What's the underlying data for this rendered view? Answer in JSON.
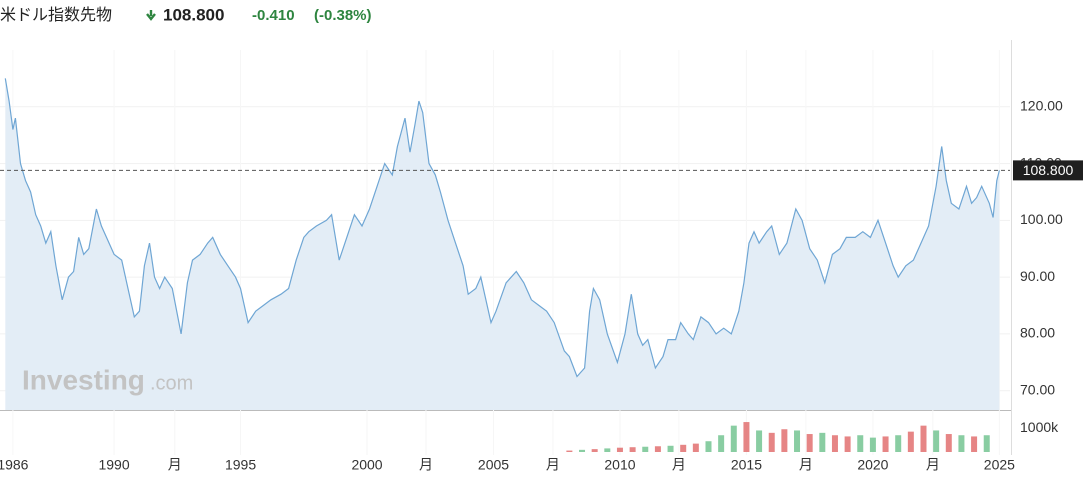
{
  "header": {
    "title": "米ドル指数先物",
    "price": "108.800",
    "change": "-0.410",
    "change_pct": "(-0.38%)"
  },
  "chart_data": {
    "type": "area",
    "watermark": [
      "Investing",
      ".com"
    ],
    "x": [
      1985.7,
      1985.85,
      1986.0,
      1986.1,
      1986.3,
      1986.5,
      1986.7,
      1986.9,
      1987.1,
      1987.3,
      1987.5,
      1987.7,
      1987.95,
      1988.2,
      1988.4,
      1988.6,
      1988.8,
      1989.0,
      1989.3,
      1989.5,
      1989.7,
      1990.0,
      1990.3,
      1990.5,
      1990.8,
      1991.0,
      1991.2,
      1991.4,
      1991.6,
      1991.8,
      1992.0,
      1992.3,
      1992.65,
      1992.9,
      1993.1,
      1993.4,
      1993.7,
      1993.9,
      1994.2,
      1994.5,
      1994.8,
      1995.0,
      1995.3,
      1995.6,
      1995.9,
      1996.2,
      1996.6,
      1996.9,
      1997.2,
      1997.5,
      1997.7,
      1998.0,
      1998.4,
      1998.6,
      1998.9,
      1999.2,
      1999.5,
      1999.8,
      2000.1,
      2000.4,
      2000.7,
      2001.0,
      2001.2,
      2001.5,
      2001.7,
      2001.9,
      2002.05,
      2002.2,
      2002.45,
      2002.7,
      2002.9,
      2003.2,
      2003.5,
      2003.8,
      2004.0,
      2004.3,
      2004.5,
      2004.9,
      2005.1,
      2005.5,
      2005.9,
      2006.2,
      2006.5,
      2006.8,
      2007.1,
      2007.4,
      2007.8,
      2008.0,
      2008.3,
      2008.6,
      2008.8,
      2008.95,
      2009.2,
      2009.5,
      2009.9,
      2010.2,
      2010.45,
      2010.7,
      2010.9,
      2011.1,
      2011.4,
      2011.7,
      2011.9,
      2012.2,
      2012.4,
      2012.7,
      2012.9,
      2013.2,
      2013.5,
      2013.8,
      2014.1,
      2014.4,
      2014.7,
      2014.9,
      2015.1,
      2015.3,
      2015.5,
      2015.8,
      2016.0,
      2016.3,
      2016.6,
      2016.95,
      2017.2,
      2017.5,
      2017.8,
      2018.1,
      2018.4,
      2018.7,
      2018.95,
      2019.3,
      2019.6,
      2019.9,
      2020.2,
      2020.5,
      2020.8,
      2021.0,
      2021.3,
      2021.6,
      2021.9,
      2022.2,
      2022.5,
      2022.72,
      2022.9,
      2023.1,
      2023.4,
      2023.7,
      2023.9,
      2024.1,
      2024.3,
      2024.6,
      2024.75,
      2024.9,
      2025.0
    ],
    "series": [
      {
        "color": "#6fa6d4",
        "fill": "#e3edf6",
        "values": [
          125,
          121,
          116,
          118,
          110,
          107,
          105,
          101,
          99,
          96,
          98,
          92,
          86,
          90,
          91,
          97,
          94,
          95,
          102,
          99,
          97,
          94,
          93,
          89,
          83,
          84,
          92,
          96,
          90,
          88,
          90,
          88,
          80,
          89,
          93,
          94,
          96,
          97,
          94,
          92,
          90,
          88,
          82,
          84,
          85,
          86,
          87,
          88,
          93,
          97,
          98,
          99,
          100,
          101,
          93,
          97,
          101,
          99,
          102,
          106,
          110,
          108,
          113,
          118,
          112,
          117,
          121,
          119,
          110,
          108,
          105,
          100,
          96,
          92,
          87,
          88,
          90,
          82,
          84,
          89,
          91,
          89,
          86,
          85,
          84,
          82,
          77,
          76,
          72.5,
          74,
          84,
          88,
          86,
          80,
          75,
          80,
          87,
          80,
          78,
          79,
          74,
          76,
          79,
          79,
          82,
          80,
          79,
          83,
          82,
          80,
          81,
          80,
          84,
          89,
          96,
          98,
          96,
          98,
          99,
          94,
          96,
          102,
          100,
          95,
          93,
          89,
          94,
          95,
          97,
          97,
          98,
          97,
          100,
          96,
          92,
          90,
          92,
          93,
          96,
          99,
          106,
          113,
          107,
          103,
          102,
          106,
          103,
          104,
          106,
          103,
          100.5,
          107,
          108.8
        ]
      }
    ],
    "xlim": [
      1985.49,
      2025.42
    ],
    "xticks": [
      1986,
      1990,
      {
        "value": 1992.4,
        "label": "月"
      },
      1995,
      2000,
      {
        "value": 2002.33,
        "label": "月"
      },
      2005,
      {
        "value": 2007.35,
        "label": "月"
      },
      2010,
      {
        "value": 2012.33,
        "label": "月"
      },
      2015,
      {
        "value": 2017.35,
        "label": "月"
      },
      2020,
      {
        "value": 2022.37,
        "label": "月"
      },
      2025
    ],
    "ylim": [
      66.6,
      130
    ],
    "yticks": [
      {
        "value": 70,
        "label": "70.00"
      },
      {
        "value": 80,
        "label": "80.00"
      },
      {
        "value": 90,
        "label": "90.00"
      },
      {
        "value": 100,
        "label": "100.00"
      },
      {
        "value": 110,
        "label": "110.00"
      },
      {
        "value": 120,
        "label": "120.00"
      }
    ],
    "last_price": {
      "value": 108.8,
      "label": "108.800"
    },
    "grid": true,
    "volume": {
      "x": [
        2008.0,
        2008.5,
        2009.0,
        2009.5,
        2010.0,
        2010.5,
        2011.0,
        2011.5,
        2012.0,
        2012.5,
        2013.0,
        2013.5,
        2014.0,
        2014.5,
        2015.0,
        2015.5,
        2016.0,
        2016.5,
        2017.0,
        2017.5,
        2018.0,
        2018.5,
        2019.0,
        2019.5,
        2020.0,
        2020.5,
        2021.0,
        2021.5,
        2022.0,
        2022.5,
        2023.0,
        2023.5,
        2024.0,
        2024.5
      ],
      "values": [
        60000,
        90000,
        120000,
        150000,
        180000,
        200000,
        220000,
        240000,
        260000,
        300000,
        350000,
        450000,
        700000,
        1100000,
        1250000,
        900000,
        800000,
        950000,
        900000,
        750000,
        800000,
        700000,
        650000,
        700000,
        600000,
        650000,
        700000,
        850000,
        1100000,
        900000,
        750000,
        700000,
        650000,
        700000
      ],
      "colors": [
        "#e06666",
        "#6cc08b",
        "#e06666",
        "#6cc08b",
        "#e06666",
        "#e06666",
        "#6cc08b",
        "#e06666",
        "#6cc08b",
        "#e06666",
        "#e06666",
        "#6cc08b",
        "#6cc08b",
        "#6cc08b",
        "#e06666",
        "#6cc08b",
        "#e06666",
        "#e06666",
        "#6cc08b",
        "#e06666",
        "#6cc08b",
        "#e06666",
        "#e06666",
        "#6cc08b",
        "#6cc08b",
        "#e06666",
        "#6cc08b",
        "#e06666",
        "#e06666",
        "#6cc08b",
        "#e06666",
        "#6cc08b",
        "#e06666",
        "#6cc08b"
      ],
      "ylim": [
        0,
        1670000
      ],
      "yticks": [
        {
          "value": 1000000,
          "label": "1000k"
        }
      ]
    }
  }
}
